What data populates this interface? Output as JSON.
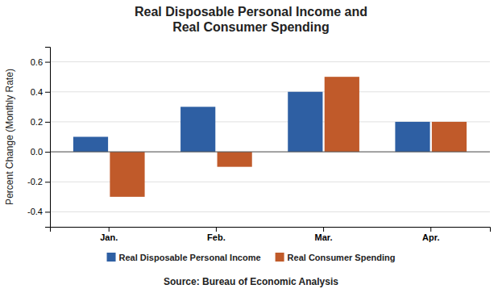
{
  "chart_data": {
    "type": "bar",
    "title": "Real Disposable Personal Income and\nReal Consumer Spending",
    "categories": [
      "Jan.",
      "Feb.",
      "Mar.",
      "Apr."
    ],
    "series": [
      {
        "name": "Real Disposable Personal Income",
        "color": "#2E5FA3",
        "values": [
          0.1,
          0.3,
          0.4,
          0.2
        ]
      },
      {
        "name": "Real Consumer Spending",
        "color": "#C05A2A",
        "values": [
          -0.3,
          -0.1,
          0.5,
          0.2
        ]
      }
    ],
    "ylabel": "Percent Change (Monthly Rate)",
    "ylim": [
      -0.5,
      0.7
    ],
    "yticks": [
      -0.4,
      -0.2,
      {
        "value": 0,
        "label": "0.0"
      },
      0.2,
      0.4,
      0.6
    ],
    "grid": true,
    "legend": "bottom",
    "annotations": [
      "Source:  Bureau of Economic Analysis"
    ]
  }
}
